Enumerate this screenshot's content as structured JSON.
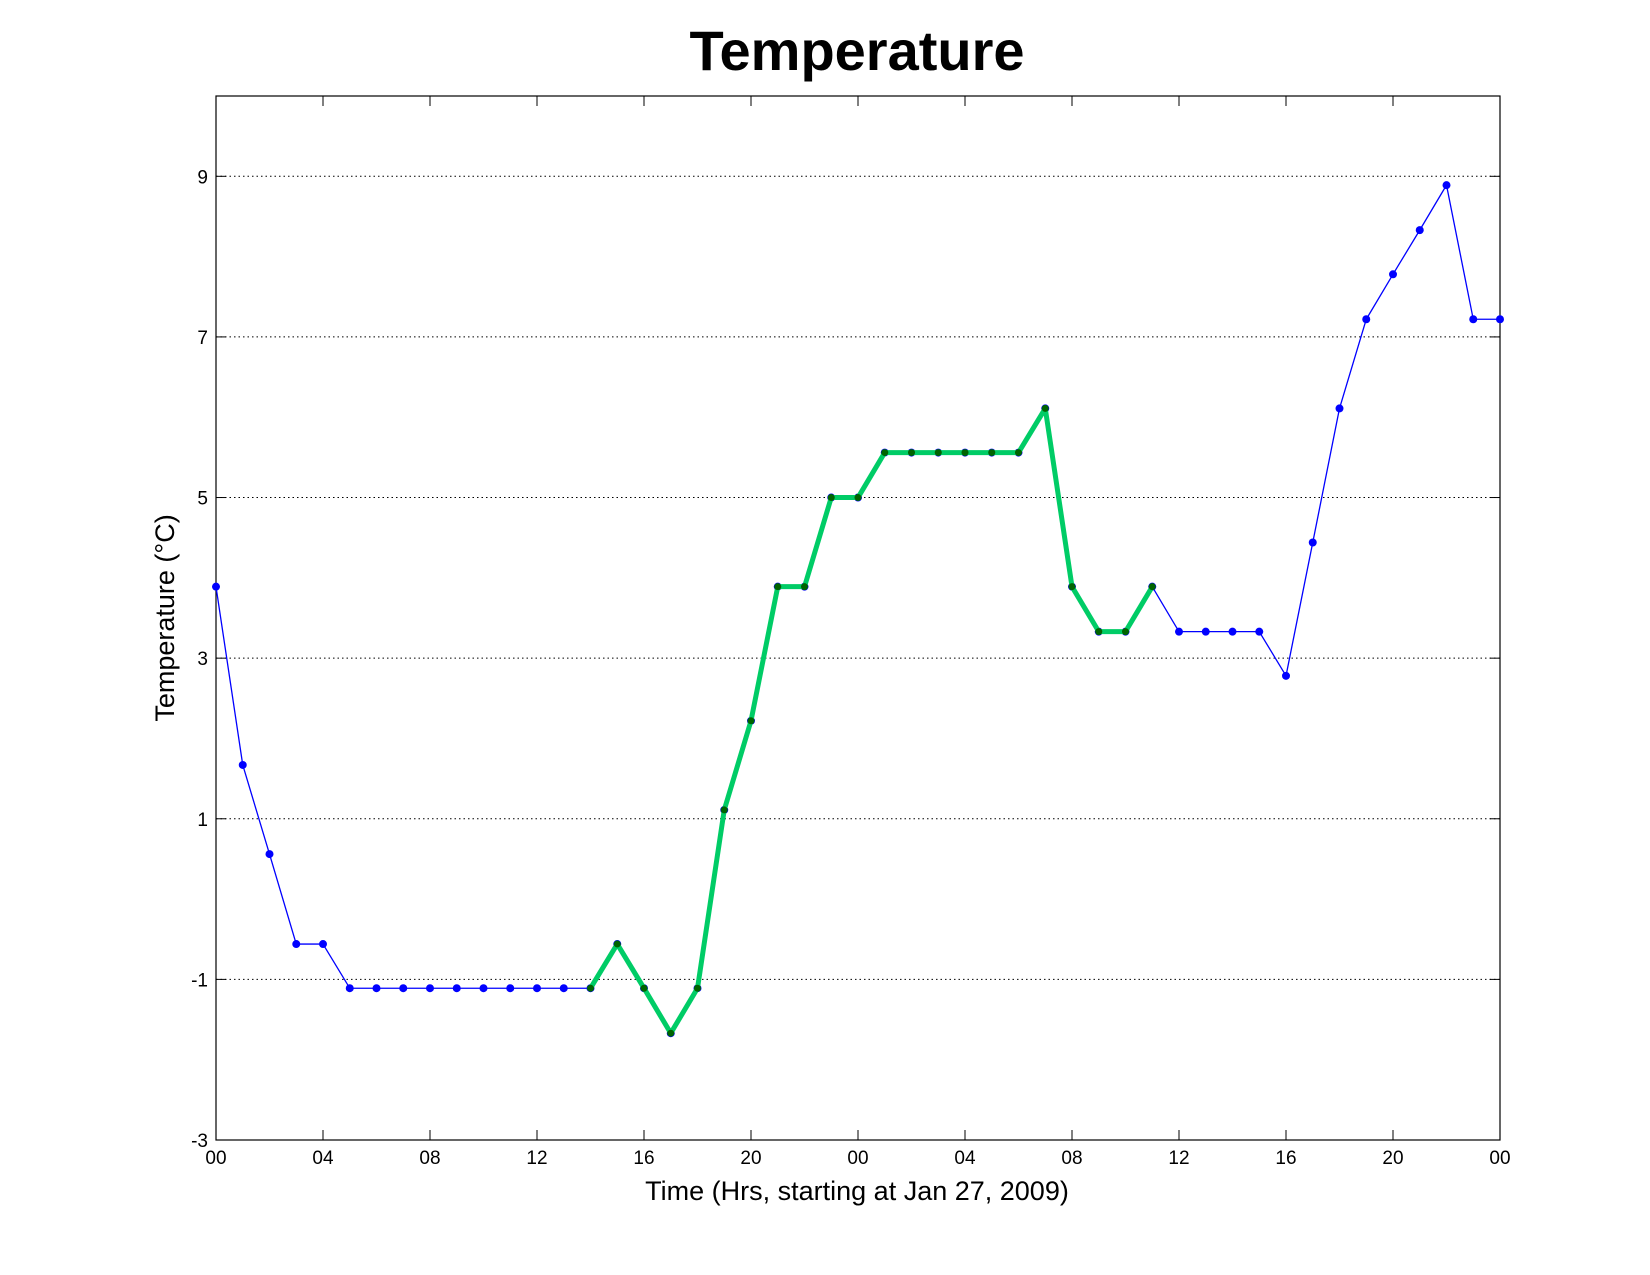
{
  "chart_data": {
    "type": "line",
    "title": "Temperature",
    "xlabel": "Time (Hrs, starting at Jan 27, 2009)",
    "ylabel": "Temperature (°C)",
    "ylim": [
      -3,
      10
    ],
    "xlim": [
      0,
      48
    ],
    "yticks": [
      -3,
      -1,
      1,
      3,
      5,
      7,
      9
    ],
    "xticks": [
      {
        "x": 0,
        "label": "00"
      },
      {
        "x": 4,
        "label": "04"
      },
      {
        "x": 8,
        "label": "08"
      },
      {
        "x": 12,
        "label": "12"
      },
      {
        "x": 16,
        "label": "16"
      },
      {
        "x": 20,
        "label": "20"
      },
      {
        "x": 24,
        "label": "00"
      },
      {
        "x": 28,
        "label": "04"
      },
      {
        "x": 32,
        "label": "08"
      },
      {
        "x": 36,
        "label": "12"
      },
      {
        "x": 40,
        "label": "16"
      },
      {
        "x": 44,
        "label": "20"
      },
      {
        "x": 48,
        "label": "00"
      }
    ],
    "grid": "horizontal dotted",
    "series": [
      {
        "color": "#0000ff",
        "marker_color": "#0000ff",
        "x": [
          0,
          1,
          2,
          3,
          4,
          5,
          6,
          7,
          8,
          9,
          10,
          11,
          12,
          13,
          14,
          15,
          16,
          17,
          18,
          19,
          20,
          21,
          22,
          23,
          24,
          25,
          26,
          27,
          28,
          29,
          30,
          31,
          32,
          33,
          34,
          35,
          36,
          37,
          38,
          39,
          40,
          41,
          42,
          43,
          44,
          45,
          46,
          47,
          48
        ],
        "y": [
          3.89,
          1.67,
          0.56,
          -0.56,
          -0.56,
          -1.11,
          -1.11,
          -1.11,
          -1.11,
          -1.11,
          -1.11,
          -1.11,
          -1.11,
          -1.11,
          -1.11,
          -0.56,
          -1.11,
          -1.67,
          -1.11,
          1.11,
          2.22,
          3.89,
          3.89,
          5.0,
          5.0,
          5.56,
          5.56,
          5.56,
          5.56,
          5.56,
          5.56,
          6.11,
          3.89,
          3.33,
          3.33,
          3.89,
          3.33,
          3.33,
          3.33,
          3.33,
          2.78,
          4.44,
          6.11,
          7.22,
          7.78,
          8.33,
          8.89,
          7.22,
          7.22
        ]
      },
      {
        "color": "#00cc66",
        "marker_color": "#006400",
        "x": [
          14,
          15,
          16,
          17,
          18,
          19,
          20,
          21,
          22,
          23,
          24,
          25,
          26,
          27,
          28,
          29,
          30,
          31,
          32,
          33,
          34,
          35
        ],
        "y": [
          -1.11,
          -0.56,
          -1.11,
          -1.67,
          -1.11,
          1.11,
          2.22,
          3.89,
          3.89,
          5.0,
          5.0,
          5.56,
          5.56,
          5.56,
          5.56,
          5.56,
          5.56,
          6.11,
          3.89,
          3.33,
          3.33,
          3.89
        ]
      }
    ]
  }
}
